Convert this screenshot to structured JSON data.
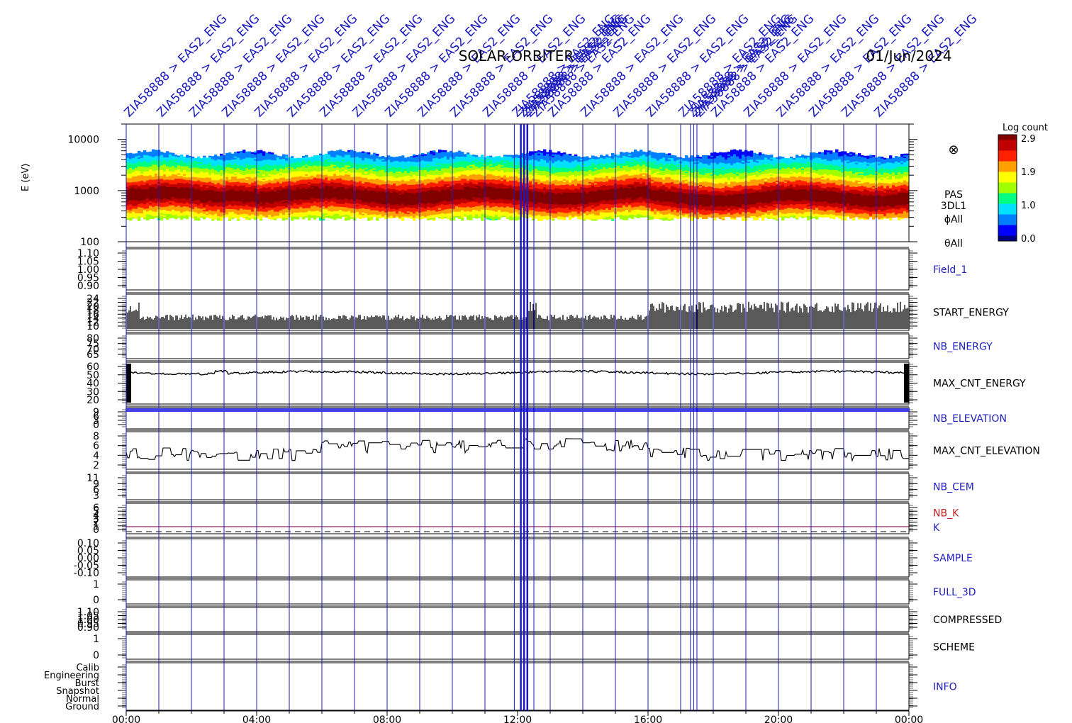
{
  "chart_data": {
    "type": "spectrogram_multipanel",
    "title": "SOLAR-ORBITER",
    "date": "01/Jun/2024",
    "x_axis": {
      "tick_labels": [
        "00:00",
        "04:00",
        "08:00",
        "12:00",
        "16:00",
        "20:00",
        "00:00"
      ],
      "range_hours": [
        0,
        24
      ]
    },
    "event_marker_text": "ZIA58888 > EAS2_ENG",
    "event_marker_hours": [
      0,
      1,
      2,
      3,
      4,
      5,
      6,
      7,
      8,
      9,
      10,
      11,
      11.9,
      12.1,
      12.2,
      12.3,
      12.5,
      13,
      14,
      15,
      16,
      17,
      17.3,
      17.4,
      17.5,
      18,
      19,
      20,
      21,
      22,
      23
    ],
    "colorbar": {
      "label": "Log count",
      "ticks": [
        "2.9",
        "1.9",
        "1.0",
        "0.0"
      ],
      "colors": [
        "#000080",
        "#0000ff",
        "#0080ff",
        "#00e0ff",
        "#00ff80",
        "#a0ff00",
        "#ffff00",
        "#ffa000",
        "#ff2000",
        "#c00000",
        "#800000"
      ]
    },
    "spectrogram": {
      "ylabel": "E (eV)",
      "y_ticks": [
        "10000",
        "1000",
        "100"
      ],
      "y_log_range": [
        100,
        20000
      ],
      "peak_energy_eV": 800,
      "side_labels": [
        "PAS",
        "3DL1",
        "ϕAll",
        "θAll"
      ],
      "symbol": "⊗"
    },
    "panels": [
      {
        "name": "Field_1",
        "ticks": [
          "1.10",
          "1.05",
          "1.00",
          "0.95",
          "0.90"
        ],
        "color": "#2020c0",
        "trace": "none"
      },
      {
        "name": "START_ENERGY",
        "ticks": [
          "24",
          "22",
          "20",
          "18",
          "16",
          "14",
          "12",
          "10"
        ],
        "color": "#000000",
        "trace": "spiky"
      },
      {
        "name": "NB_ENERGY",
        "ticks": [
          "80",
          "75",
          "70",
          "65"
        ],
        "color": "#2020c0",
        "trace": "none"
      },
      {
        "name": "MAX_CNT_ENERGY",
        "ticks": [
          "60",
          "50",
          "40",
          "30",
          "20"
        ],
        "color": "#000000",
        "trace": "line",
        "level": 54
      },
      {
        "name": "NB_ELEVATION",
        "ticks": [
          "9",
          "6",
          "3",
          "0"
        ],
        "color": "#2020c0",
        "trace": "band",
        "level": 8
      },
      {
        "name": "MAX_CNT_ELEVATION",
        "ticks": [
          "8",
          "6",
          "4",
          "2"
        ],
        "color": "#000000",
        "trace": "step",
        "level": 4.5
      },
      {
        "name": "NB_CEM",
        "ticks": [
          "11",
          "9",
          "6",
          "3"
        ],
        "color": "#2020c0",
        "trace": "none"
      },
      {
        "name": "NB_K",
        "ticks": [
          "6",
          "5",
          "4",
          "3",
          "2",
          "1",
          "0"
        ],
        "color": "#c02020",
        "trace": "dash",
        "extra_label": "K",
        "extra_color": "#2020c0"
      },
      {
        "name": "SAMPLE",
        "ticks": [
          "0.10",
          "0.05",
          "0.00",
          "-0.05",
          "-0.10"
        ],
        "color": "#2020c0",
        "trace": "none"
      },
      {
        "name": "FULL_3D",
        "ticks": [
          "1",
          "0"
        ],
        "color": "#2020c0",
        "trace": "none"
      },
      {
        "name": "COMPRESSED",
        "ticks": [
          "1.10",
          "1.05",
          "1.00",
          "0.95",
          "0.90"
        ],
        "color": "#000000",
        "trace": "none"
      },
      {
        "name": "SCHEME",
        "ticks": [
          "1",
          "0"
        ],
        "color": "#000000",
        "trace": "none"
      },
      {
        "name": "INFO",
        "ticks": [
          "Calib",
          "Engineering",
          "Burst",
          "Snapshot",
          "Normal",
          "Ground"
        ],
        "color": "#2020c0",
        "trace": "none"
      }
    ]
  }
}
